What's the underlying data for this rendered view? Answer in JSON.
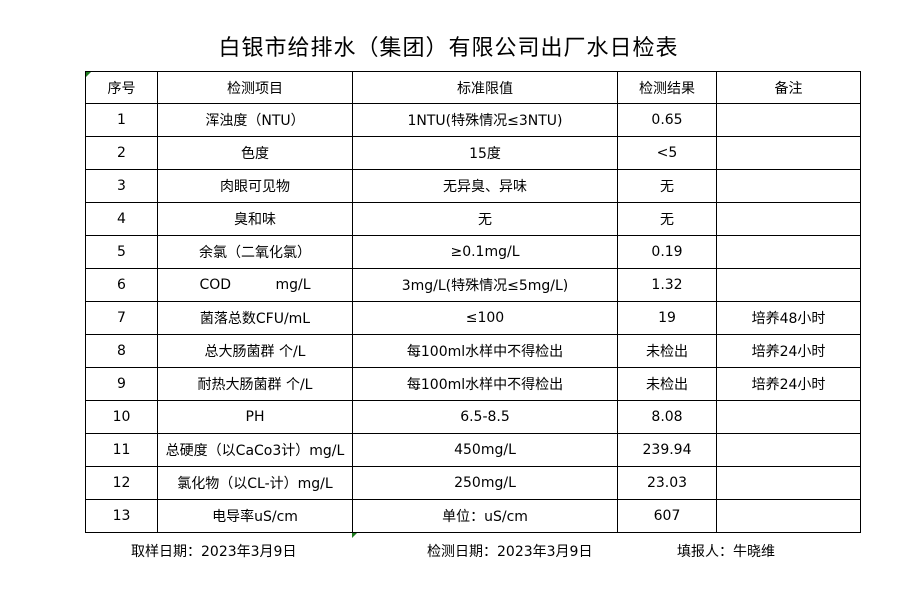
{
  "title": "白银市给排水（集团）有限公司出厂水日检表",
  "columns": [
    "序号",
    "检测项目",
    "标准限值",
    "检测结果",
    "备注"
  ],
  "rows": [
    [
      "1",
      "浑浊度（NTU）",
      "1NTU(特殊情况≤3NTU)",
      "0.65",
      ""
    ],
    [
      "2",
      "色度",
      "15度",
      "<5",
      ""
    ],
    [
      "3",
      "肉眼可见物",
      "无异臭、异味",
      "无",
      ""
    ],
    [
      "4",
      "臭和味",
      "无",
      "无",
      ""
    ],
    [
      "5",
      "余氯（二氧化氯）",
      "≥0.1mg/L",
      "0.19",
      ""
    ],
    [
      "6",
      "COD          mg/L",
      "3mg/L(特殊情况≤5mg/L)",
      "1.32",
      ""
    ],
    [
      "7",
      "菌落总数CFU/mL",
      "≤100",
      "19",
      "培养48小时"
    ],
    [
      "8",
      "总大肠菌群 个/L",
      "每100ml水样中不得检出",
      "未检出",
      "培养24小时"
    ],
    [
      "9",
      "耐热大肠菌群 个/L",
      "每100ml水样中不得检出",
      "未检出",
      "培养24小时"
    ],
    [
      "10",
      "PH",
      "6.5-8.5",
      "8.08",
      ""
    ],
    [
      "11",
      "总硬度（以CaCo3计）mg/L",
      "450mg/L",
      "239.94",
      ""
    ],
    [
      "12",
      "氯化物（以CL-计）mg/L",
      "250mg/L",
      "23.03",
      ""
    ],
    [
      "13",
      "电导率uS/cm",
      "单位：uS/cm",
      "607",
      ""
    ]
  ],
  "footer": {
    "sampling_date": "取样日期：2023年3月9日",
    "test_date": "检测日期：2023年3月9日",
    "reporter": "填报人：牛晓维"
  },
  "colors": {
    "cell_marker": "#1e7b1e"
  }
}
